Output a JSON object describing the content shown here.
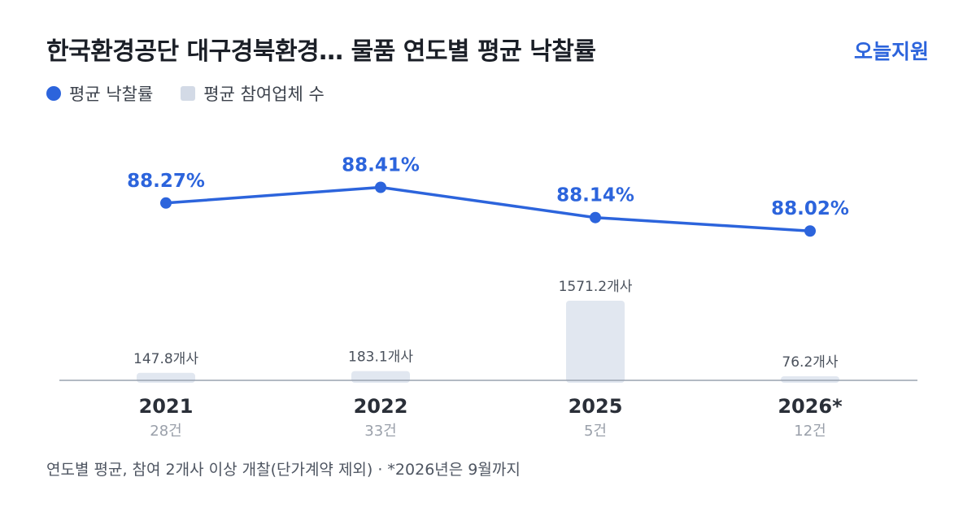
{
  "header": {
    "title": "한국환경공단 대구경북환경… 물품 연도별 평균 낙찰률",
    "brand": "오늘지원"
  },
  "legend": {
    "line_label": "평균 낙찰률",
    "bar_label": "평균 참여업체 수"
  },
  "colors": {
    "line": "#2c64dc",
    "bar": "#e1e7f0",
    "axis": "#9aa3af"
  },
  "chart_data": {
    "type": "bar",
    "categories": [
      "2021",
      "2022",
      "2025",
      "2026*"
    ],
    "sublabels": [
      "28건",
      "33건",
      "5건",
      "12건"
    ],
    "series": [
      {
        "name": "평균 낙찰률",
        "type": "line",
        "values": [
          88.27,
          88.41,
          88.14,
          88.02
        ],
        "labels": [
          "88.27%",
          "88.41%",
          "88.14%",
          "88.02%"
        ]
      },
      {
        "name": "평균 참여업체 수",
        "type": "bar",
        "values": [
          147.8,
          183.1,
          1571.2,
          76.2
        ],
        "labels": [
          "147.8개사",
          "183.1개사",
          "1571.2개사",
          "76.2개사"
        ]
      }
    ],
    "legend_position": "top-left",
    "grid": false
  },
  "footnote": "연도별 평균, 참여 2개사 이상 개찰(단가계약 제외) · *2026년은 9월까지"
}
